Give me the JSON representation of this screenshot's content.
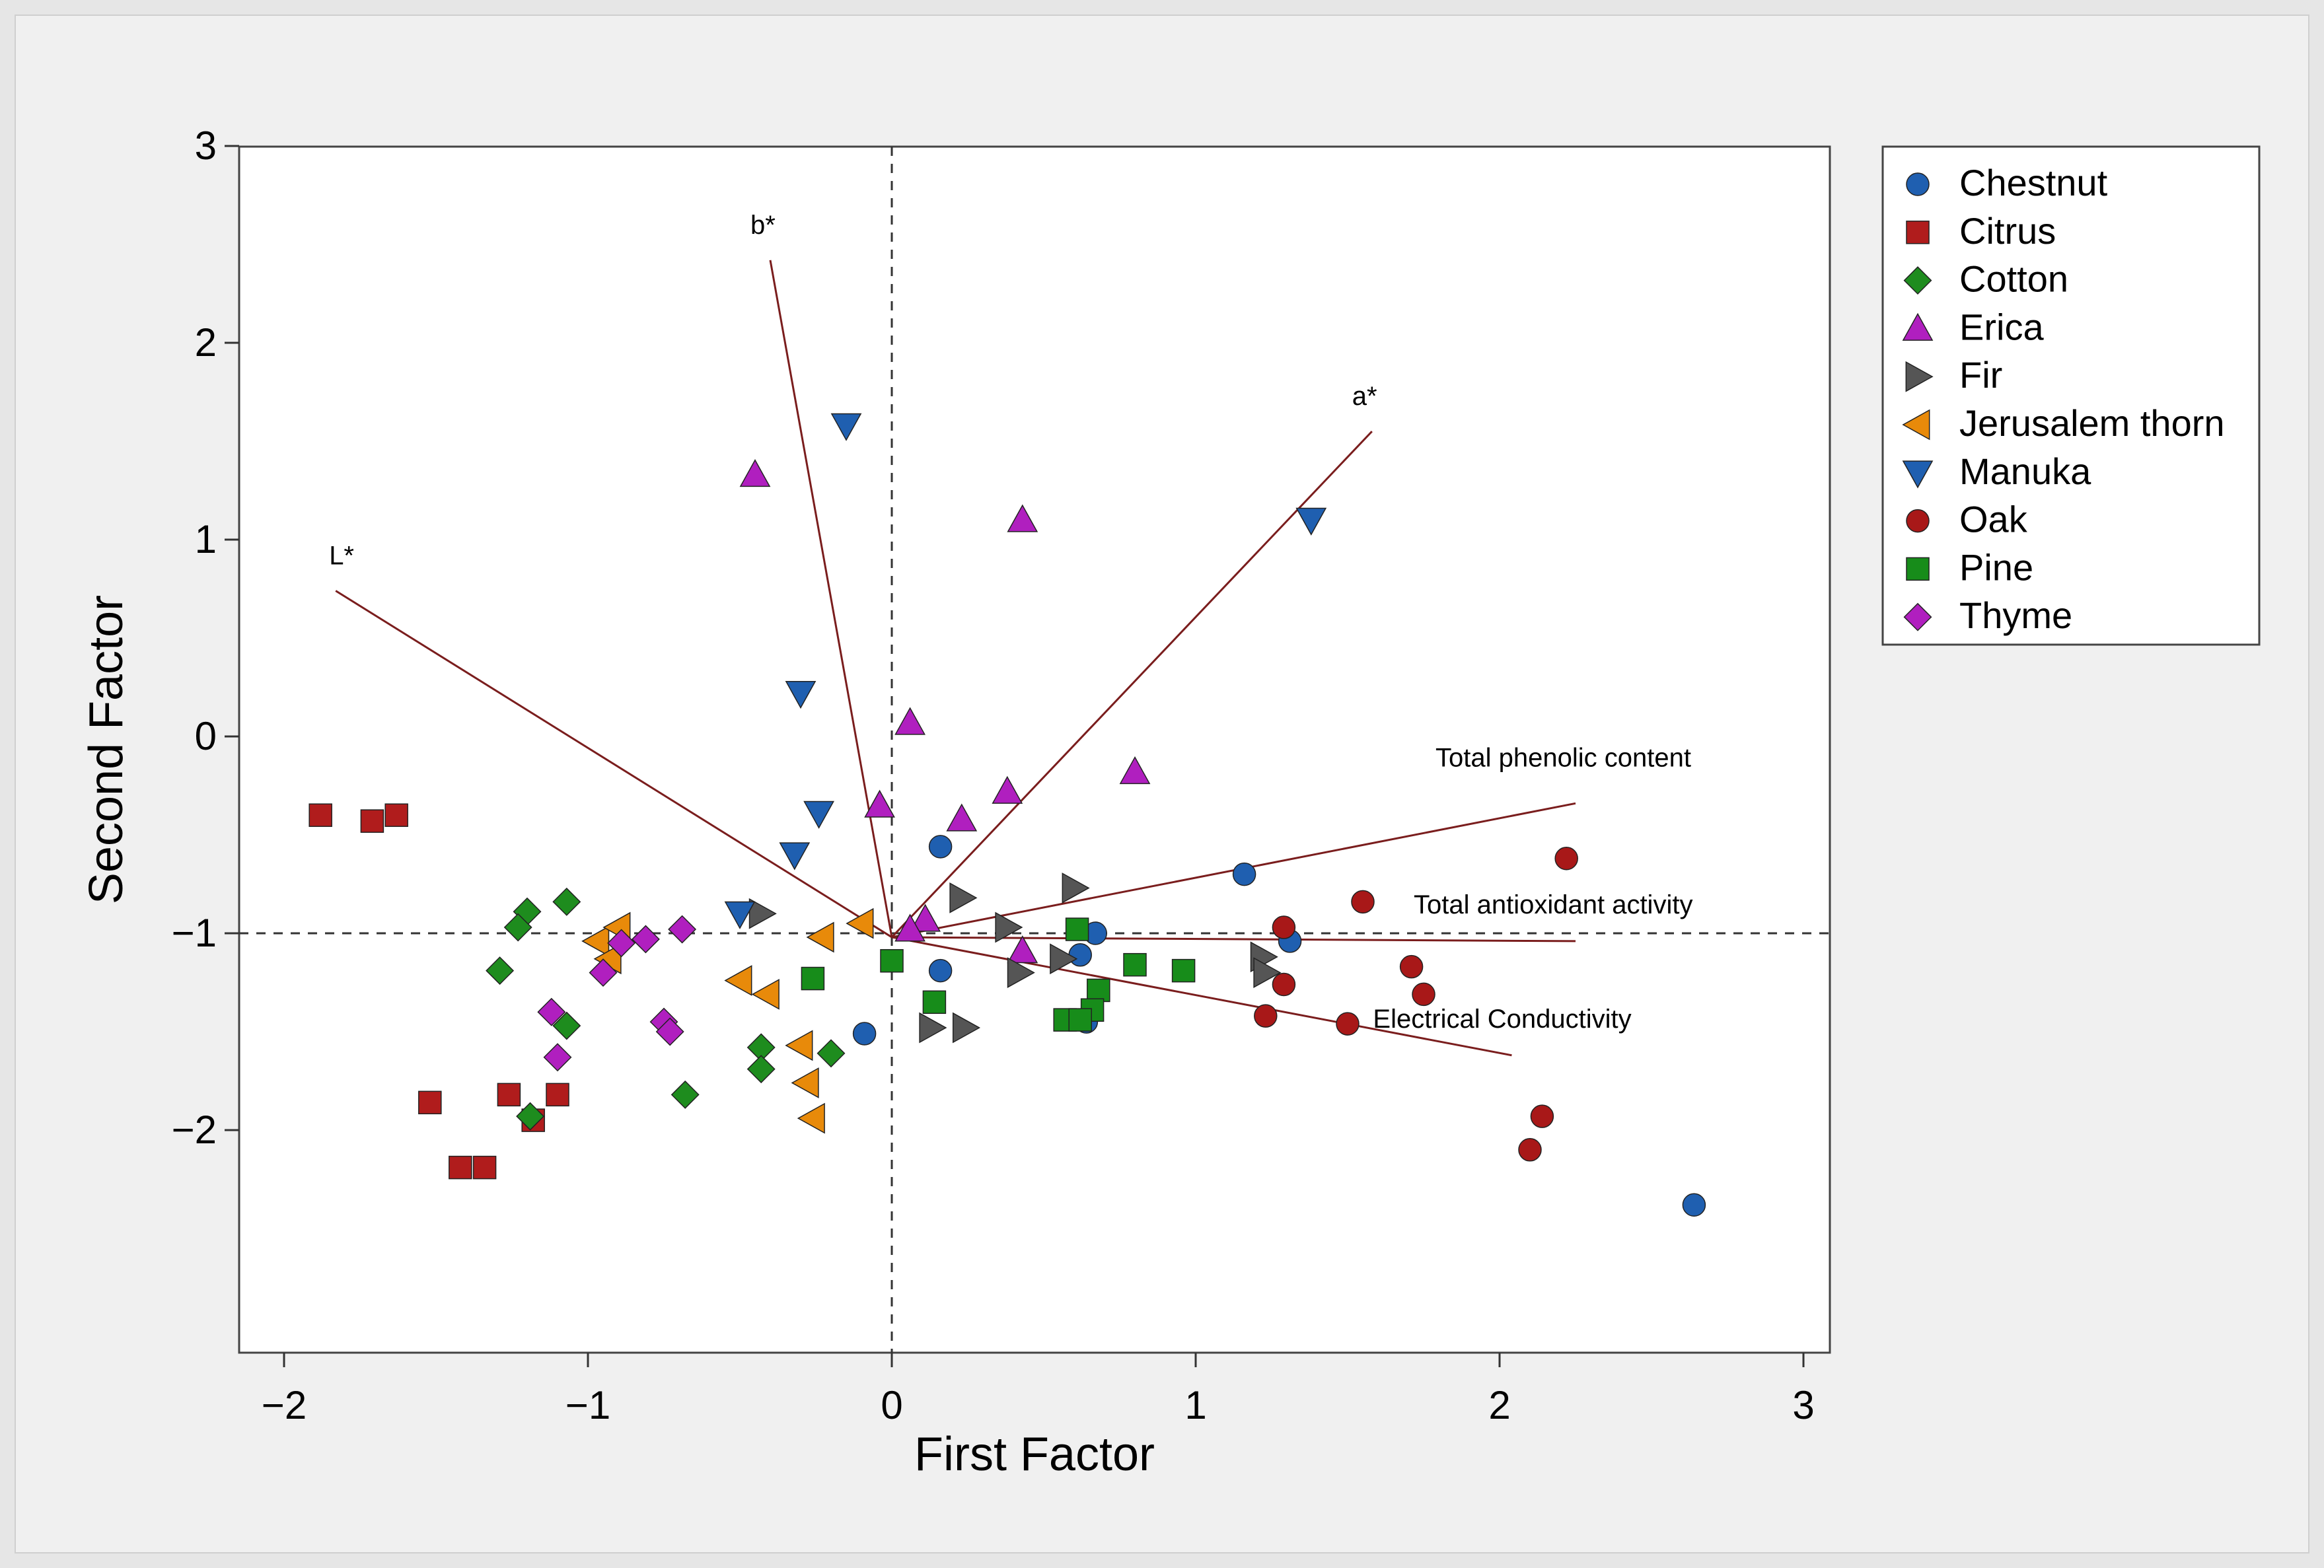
{
  "chart_data": {
    "type": "scatter",
    "title": "",
    "xlabel": "First Factor",
    "ylabel": "Second Factor",
    "xlim": [
      -2.2,
      3.1
    ],
    "ylim": [
      -3.1,
      3.0
    ],
    "xticks": [
      -2,
      -1,
      0,
      1,
      2,
      3
    ],
    "xtick_labels": [
      "−2",
      "−1",
      "0",
      "1",
      "2",
      "3"
    ],
    "yticks": [
      3,
      2,
      1,
      0,
      -1,
      -2
    ],
    "ytick_labels": [
      "3",
      "2",
      "1",
      "0",
      "−1",
      "−2"
    ],
    "reference_lines": {
      "x": 0,
      "y": -1
    },
    "legend_position": "right-top",
    "vectors": [
      {
        "name": "L*",
        "label": "L*",
        "start": [
          0,
          -1.02
        ],
        "end": [
          -1.83,
          0.74
        ]
      },
      {
        "name": "b*",
        "label": "b*",
        "start": [
          0,
          -1.02
        ],
        "end": [
          -0.4,
          2.42
        ]
      },
      {
        "name": "a*",
        "label": "a*",
        "start": [
          0,
          -1.02
        ],
        "end": [
          1.58,
          1.55
        ]
      },
      {
        "name": "Total phenolic content",
        "label": "Total phenolic content",
        "start": [
          0,
          -1.02
        ],
        "end": [
          2.25,
          -0.34
        ]
      },
      {
        "name": "Total antioxidant activity",
        "label": "Total antioxidant activity",
        "start": [
          0,
          -1.02
        ],
        "end": [
          2.25,
          -1.04
        ]
      },
      {
        "name": "Electrical Conductivity",
        "label": "Electrical Conductivity",
        "start": [
          0,
          -1.02
        ],
        "end": [
          2.04,
          -1.62
        ]
      }
    ],
    "series": [
      {
        "name": "Chestnut",
        "marker": "circle",
        "color": "#1f5fb0",
        "points": [
          [
            0.16,
            -0.56
          ],
          [
            1.16,
            -0.7
          ],
          [
            1.31,
            -1.04
          ],
          [
            0.67,
            -1.0
          ],
          [
            0.62,
            -1.11
          ],
          [
            0.16,
            -1.19
          ],
          [
            -0.09,
            -1.51
          ],
          [
            0.64,
            -1.45
          ],
          [
            2.64,
            -2.38
          ]
        ]
      },
      {
        "name": "Citrus",
        "marker": "square",
        "color": "#b01c1c",
        "points": [
          [
            -1.88,
            -0.4
          ],
          [
            -1.71,
            -0.43
          ],
          [
            -1.63,
            -0.4
          ],
          [
            -1.52,
            -1.86
          ],
          [
            -1.26,
            -1.82
          ],
          [
            -1.1,
            -1.82
          ],
          [
            -1.18,
            -1.95
          ],
          [
            -1.42,
            -2.19
          ],
          [
            -1.34,
            -2.19
          ]
        ]
      },
      {
        "name": "Cotton",
        "marker": "diamond",
        "color": "#1e8c1e",
        "points": [
          [
            -1.2,
            -0.89
          ],
          [
            -1.23,
            -0.97
          ],
          [
            -1.07,
            -0.84
          ],
          [
            -1.29,
            -1.19
          ],
          [
            -1.07,
            -1.47
          ],
          [
            -1.19,
            -1.93
          ],
          [
            -0.43,
            -1.58
          ],
          [
            -0.43,
            -1.69
          ],
          [
            -0.2,
            -1.61
          ],
          [
            -0.68,
            -1.82
          ]
        ]
      },
      {
        "name": "Erica",
        "marker": "triangle-up",
        "color": "#b01fbf",
        "points": [
          [
            -0.45,
            1.33
          ],
          [
            0.43,
            1.1
          ],
          [
            0.06,
            0.07
          ],
          [
            -0.04,
            -0.35
          ],
          [
            0.23,
            -0.42
          ],
          [
            0.38,
            -0.28
          ],
          [
            0.8,
            -0.18
          ],
          [
            0.11,
            -0.93
          ],
          [
            0.06,
            -0.98
          ],
          [
            0.43,
            -1.09
          ]
        ]
      },
      {
        "name": "Fir",
        "marker": "triangle-right",
        "color": "#555555",
        "points": [
          [
            -0.43,
            -0.9
          ],
          [
            0.23,
            -0.82
          ],
          [
            0.38,
            -0.97
          ],
          [
            0.6,
            -0.77
          ],
          [
            0.42,
            -1.2
          ],
          [
            0.56,
            -1.13
          ],
          [
            1.22,
            -1.12
          ],
          [
            1.23,
            -1.2
          ],
          [
            0.13,
            -1.48
          ],
          [
            0.24,
            -1.48
          ]
        ]
      },
      {
        "name": "Jerusalem thorn",
        "marker": "triangle-left",
        "color": "#e88a0a",
        "points": [
          [
            -0.1,
            -0.95
          ],
          [
            -0.23,
            -1.02
          ],
          [
            -0.97,
            -1.04
          ],
          [
            -0.9,
            -0.97
          ],
          [
            -0.93,
            -1.13
          ],
          [
            -0.5,
            -1.24
          ],
          [
            -0.41,
            -1.31
          ],
          [
            -0.3,
            -1.57
          ],
          [
            -0.28,
            -1.76
          ],
          [
            -0.26,
            -1.94
          ]
        ]
      },
      {
        "name": "Manuka",
        "marker": "triangle-down",
        "color": "#1f5fb0",
        "points": [
          [
            -0.15,
            1.58
          ],
          [
            1.38,
            1.1
          ],
          [
            -0.3,
            0.22
          ],
          [
            -0.24,
            -0.39
          ],
          [
            -0.32,
            -0.6
          ],
          [
            -0.5,
            -0.9
          ]
        ]
      },
      {
        "name": "Oak",
        "marker": "circle",
        "color": "#a81818",
        "points": [
          [
            2.22,
            -0.62
          ],
          [
            1.55,
            -0.84
          ],
          [
            1.29,
            -0.97
          ],
          [
            1.71,
            -1.17
          ],
          [
            1.75,
            -1.31
          ],
          [
            1.29,
            -1.26
          ],
          [
            1.23,
            -1.42
          ],
          [
            1.5,
            -1.46
          ],
          [
            2.14,
            -1.93
          ],
          [
            2.1,
            -2.1
          ]
        ]
      },
      {
        "name": "Pine",
        "marker": "square",
        "color": "#178c1a",
        "points": [
          [
            0.0,
            -1.14
          ],
          [
            0.61,
            -0.98
          ],
          [
            -0.26,
            -1.23
          ],
          [
            0.8,
            -1.16
          ],
          [
            0.96,
            -1.19
          ],
          [
            0.68,
            -1.29
          ],
          [
            0.14,
            -1.35
          ],
          [
            0.66,
            -1.39
          ],
          [
            0.57,
            -1.44
          ],
          [
            0.62,
            -1.44
          ]
        ]
      },
      {
        "name": "Thyme",
        "marker": "diamond",
        "color": "#b01fbf",
        "points": [
          [
            -0.89,
            -1.05
          ],
          [
            -0.81,
            -1.03
          ],
          [
            -0.69,
            -0.98
          ],
          [
            -0.95,
            -1.2
          ],
          [
            -1.12,
            -1.4
          ],
          [
            -0.75,
            -1.45
          ],
          [
            -0.73,
            -1.5
          ],
          [
            -1.1,
            -1.63
          ]
        ]
      }
    ]
  }
}
